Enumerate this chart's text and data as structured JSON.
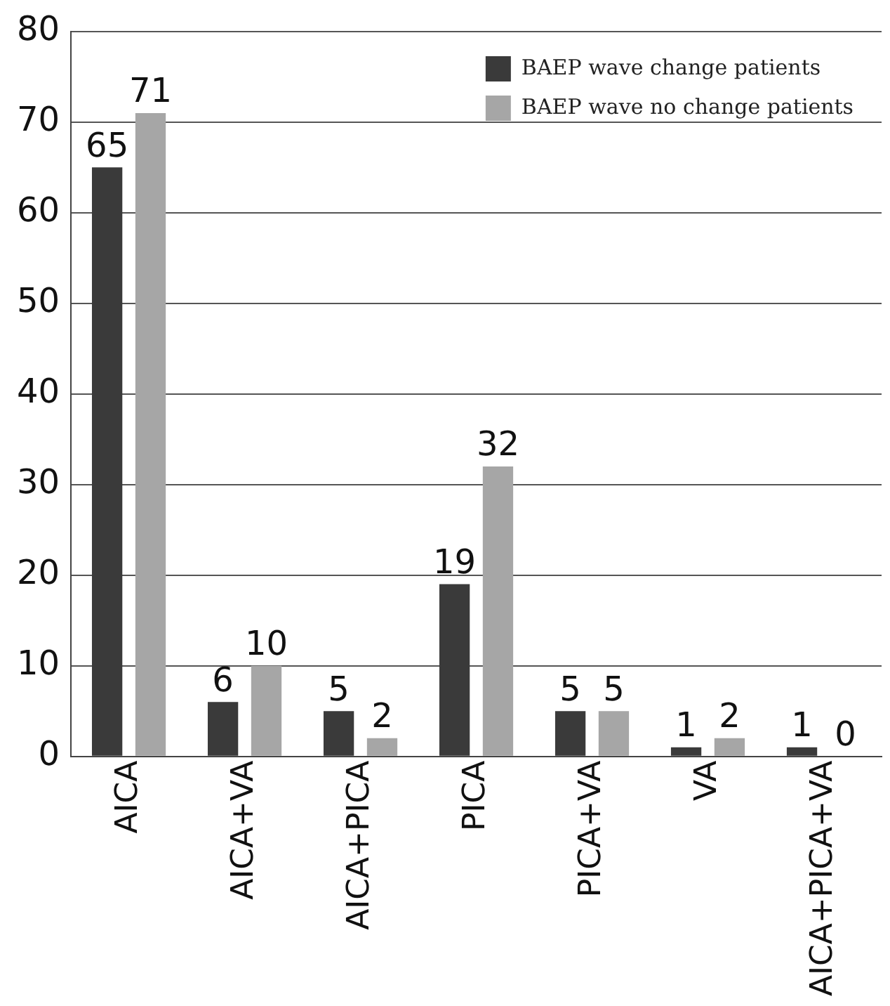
{
  "chart_data": {
    "type": "bar",
    "categories": [
      "AICA",
      "AICA+VA",
      "AICA+PICA",
      "PICA",
      "PICA+VA",
      "VA",
      "AICA+PICA+VA"
    ],
    "series": [
      {
        "name": "BAEP wave change patients",
        "color": "#3a3a3a",
        "values": [
          65,
          6,
          5,
          19,
          5,
          1,
          1
        ]
      },
      {
        "name": "BAEP wave no change patients",
        "color": "#a6a6a6",
        "values": [
          71,
          10,
          2,
          32,
          5,
          2,
          0
        ]
      }
    ],
    "ylim": [
      0,
      80
    ],
    "yticks": [
      0,
      10,
      20,
      30,
      40,
      50,
      60,
      70,
      80
    ],
    "grid": "y",
    "legend": "top right",
    "data_labels": true
  }
}
